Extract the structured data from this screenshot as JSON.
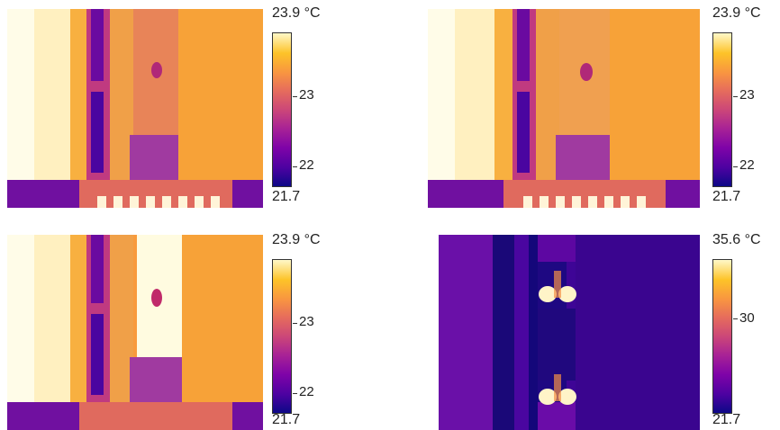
{
  "panels": [
    {
      "max_label": "23.9 °C",
      "min_label": "21.7",
      "ticks": [
        "23",
        "22"
      ]
    },
    {
      "max_label": "23.9 °C",
      "min_label": "21.7",
      "ticks": [
        "23",
        "22"
      ]
    },
    {
      "max_label": "23.9 °C",
      "min_label": "21.7",
      "ticks": [
        "23",
        "22"
      ]
    },
    {
      "max_label": "35.6 °C",
      "min_label": "21.7",
      "ticks": [
        "30"
      ]
    }
  ],
  "colors": {
    "low": "#0d0887",
    "mid": "#cc4778",
    "high": "#fff8c8",
    "orange": "#f89441"
  }
}
